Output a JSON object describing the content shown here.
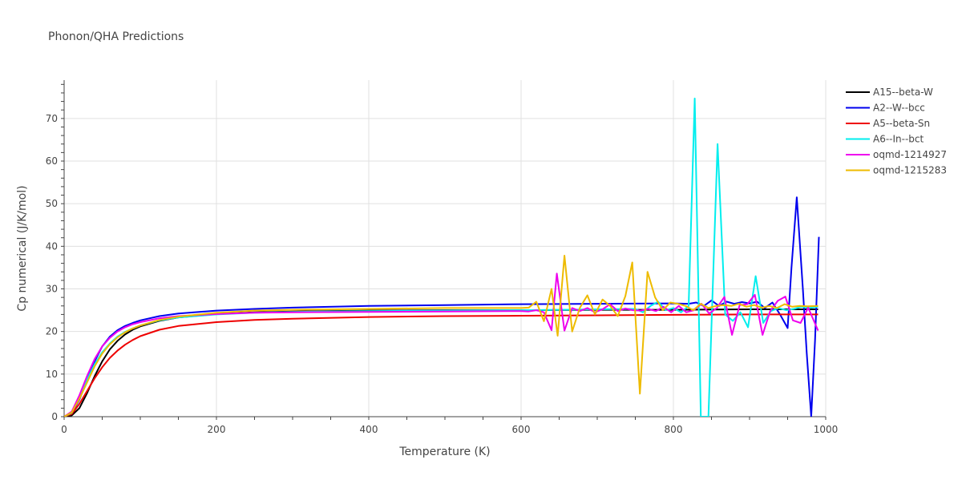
{
  "chart_data": {
    "type": "line",
    "title": "Phonon/QHA Predictions",
    "xlabel": "Temperature (K)",
    "ylabel": "Cp numerical (J/K/mol)",
    "xlim": [
      0,
      1000
    ],
    "ylim": [
      0,
      79
    ],
    "x_ticks": [
      0,
      200,
      400,
      600,
      800,
      1000
    ],
    "y_ticks": [
      0,
      10,
      20,
      30,
      40,
      50,
      60,
      70
    ],
    "grid": true,
    "legend_position": "top-right",
    "series": [
      {
        "name": "A15--beta-W",
        "color": "#000000",
        "points": [
          [
            0,
            0
          ],
          [
            10,
            0.3
          ],
          [
            20,
            2
          ],
          [
            30,
            5.5
          ],
          [
            40,
            9.5
          ],
          [
            50,
            13
          ],
          [
            60,
            15.8
          ],
          [
            70,
            17.8
          ],
          [
            80,
            19.3
          ],
          [
            90,
            20.4
          ],
          [
            100,
            21.2
          ],
          [
            125,
            22.5
          ],
          [
            150,
            23.3
          ],
          [
            200,
            24.1
          ],
          [
            250,
            24.5
          ],
          [
            300,
            24.7
          ],
          [
            400,
            24.9
          ],
          [
            500,
            25
          ],
          [
            600,
            25
          ],
          [
            700,
            25.1
          ],
          [
            800,
            25.1
          ],
          [
            900,
            25.2
          ],
          [
            990,
            25.2
          ]
        ]
      },
      {
        "name": "A2--W--bcc",
        "color": "#0000ee",
        "points": [
          [
            0,
            0
          ],
          [
            10,
            0.8
          ],
          [
            20,
            4
          ],
          [
            30,
            8.5
          ],
          [
            40,
            13
          ],
          [
            50,
            16.5
          ],
          [
            60,
            18.8
          ],
          [
            70,
            20.3
          ],
          [
            80,
            21.3
          ],
          [
            90,
            22
          ],
          [
            100,
            22.6
          ],
          [
            125,
            23.6
          ],
          [
            150,
            24.2
          ],
          [
            200,
            24.9
          ],
          [
            250,
            25.3
          ],
          [
            300,
            25.6
          ],
          [
            400,
            26
          ],
          [
            500,
            26.2
          ],
          [
            600,
            26.4
          ],
          [
            700,
            26.5
          ],
          [
            800,
            26.6
          ],
          [
            820,
            26.5
          ],
          [
            830,
            26.8
          ],
          [
            840,
            26
          ],
          [
            850,
            27.3
          ],
          [
            860,
            26
          ],
          [
            870,
            27
          ],
          [
            880,
            26.5
          ],
          [
            890,
            26.9
          ],
          [
            900,
            26.6
          ],
          [
            910,
            27
          ],
          [
            920,
            25.5
          ],
          [
            930,
            26.8
          ],
          [
            940,
            24
          ],
          [
            950,
            20.8
          ],
          [
            955,
            35
          ],
          [
            962,
            51.5
          ],
          [
            970,
            30
          ],
          [
            975,
            15
          ],
          [
            981,
            0
          ],
          [
            986,
            18
          ],
          [
            991,
            42.2
          ]
        ]
      },
      {
        "name": "A5--beta-Sn",
        "color": "#ee0000",
        "points": [
          [
            0,
            0
          ],
          [
            10,
            0.6
          ],
          [
            20,
            3
          ],
          [
            30,
            6
          ],
          [
            40,
            9
          ],
          [
            50,
            11.6
          ],
          [
            60,
            13.8
          ],
          [
            70,
            15.5
          ],
          [
            80,
            16.9
          ],
          [
            90,
            18
          ],
          [
            100,
            18.9
          ],
          [
            125,
            20.4
          ],
          [
            150,
            21.3
          ],
          [
            200,
            22.2
          ],
          [
            250,
            22.7
          ],
          [
            300,
            23
          ],
          [
            400,
            23.4
          ],
          [
            500,
            23.6
          ],
          [
            600,
            23.7
          ],
          [
            700,
            23.8
          ],
          [
            800,
            23.9
          ],
          [
            900,
            24
          ],
          [
            990,
            24
          ]
        ]
      },
      {
        "name": "A6--In--bct",
        "color": "#00eeee",
        "points": [
          [
            0,
            0
          ],
          [
            10,
            0.9
          ],
          [
            20,
            4.5
          ],
          [
            30,
            8.6
          ],
          [
            40,
            12.3
          ],
          [
            50,
            15.1
          ],
          [
            60,
            17.2
          ],
          [
            70,
            18.8
          ],
          [
            80,
            19.9
          ],
          [
            90,
            20.7
          ],
          [
            100,
            21.4
          ],
          [
            125,
            22.6
          ],
          [
            150,
            23.3
          ],
          [
            200,
            24
          ],
          [
            250,
            24.4
          ],
          [
            300,
            24.6
          ],
          [
            400,
            24.8
          ],
          [
            500,
            24.9
          ],
          [
            600,
            25
          ],
          [
            650,
            25.1
          ],
          [
            700,
            25.2
          ],
          [
            750,
            25.3
          ],
          [
            760,
            24.5
          ],
          [
            770,
            26
          ],
          [
            780,
            27
          ],
          [
            790,
            25
          ],
          [
            800,
            25.5
          ],
          [
            810,
            24.5
          ],
          [
            820,
            26
          ],
          [
            828,
            74.7
          ],
          [
            836,
            0
          ],
          [
            846,
            0
          ],
          [
            858,
            64
          ],
          [
            868,
            24
          ],
          [
            878,
            22.5
          ],
          [
            888,
            24.5
          ],
          [
            898,
            21
          ],
          [
            908,
            33
          ],
          [
            918,
            22
          ],
          [
            928,
            24.8
          ],
          [
            938,
            25.5
          ],
          [
            948,
            25
          ],
          [
            958,
            25.3
          ],
          [
            968,
            25.8
          ],
          [
            978,
            25.5
          ],
          [
            990,
            25.8
          ]
        ]
      },
      {
        "name": "oqmd-1214927",
        "color": "#ee00ee",
        "points": [
          [
            0,
            0
          ],
          [
            10,
            1.2
          ],
          [
            20,
            5
          ],
          [
            30,
            9.5
          ],
          [
            40,
            13.5
          ],
          [
            50,
            16.5
          ],
          [
            60,
            18.5
          ],
          [
            70,
            20
          ],
          [
            80,
            21
          ],
          [
            90,
            21.7
          ],
          [
            100,
            22.2
          ],
          [
            125,
            23.1
          ],
          [
            150,
            23.6
          ],
          [
            200,
            24.1
          ],
          [
            250,
            24.4
          ],
          [
            300,
            24.5
          ],
          [
            400,
            24.6
          ],
          [
            500,
            24.7
          ],
          [
            600,
            24.8
          ],
          [
            610,
            24.7
          ],
          [
            620,
            25
          ],
          [
            630,
            24.5
          ],
          [
            640,
            20.3
          ],
          [
            647,
            33.6
          ],
          [
            657,
            20.2
          ],
          [
            667,
            25.5
          ],
          [
            677,
            24.8
          ],
          [
            687,
            25.5
          ],
          [
            697,
            24.5
          ],
          [
            707,
            25.2
          ],
          [
            717,
            26.4
          ],
          [
            727,
            24.8
          ],
          [
            737,
            25.4
          ],
          [
            747,
            25
          ],
          [
            757,
            24.9
          ],
          [
            767,
            25.3
          ],
          [
            777,
            24.8
          ],
          [
            787,
            25.8
          ],
          [
            797,
            24.5
          ],
          [
            807,
            26
          ],
          [
            817,
            24.5
          ],
          [
            827,
            25
          ],
          [
            837,
            26.5
          ],
          [
            847,
            24.2
          ],
          [
            857,
            25.5
          ],
          [
            867,
            28.1
          ],
          [
            877,
            19.2
          ],
          [
            887,
            26.2
          ],
          [
            897,
            26.4
          ],
          [
            907,
            28.6
          ],
          [
            917,
            19.2
          ],
          [
            927,
            24.8
          ],
          [
            937,
            27.2
          ],
          [
            947,
            28.2
          ],
          [
            957,
            22.6
          ],
          [
            967,
            22
          ],
          [
            977,
            25.6
          ],
          [
            990,
            20.2
          ]
        ]
      },
      {
        "name": "oqmd-1215283",
        "color": "#eebb00",
        "points": [
          [
            0,
            0
          ],
          [
            10,
            1
          ],
          [
            20,
            4.2
          ],
          [
            30,
            8
          ],
          [
            40,
            11.8
          ],
          [
            50,
            14.8
          ],
          [
            60,
            17
          ],
          [
            70,
            18.6
          ],
          [
            80,
            19.8
          ],
          [
            90,
            20.7
          ],
          [
            100,
            21.4
          ],
          [
            125,
            22.7
          ],
          [
            150,
            23.5
          ],
          [
            200,
            24.4
          ],
          [
            250,
            24.9
          ],
          [
            300,
            25.1
          ],
          [
            400,
            25.3
          ],
          [
            500,
            25.5
          ],
          [
            600,
            25.5
          ],
          [
            610,
            25.6
          ],
          [
            620,
            27
          ],
          [
            630,
            22.4
          ],
          [
            640,
            30
          ],
          [
            648,
            19
          ],
          [
            657,
            37.8
          ],
          [
            667,
            20
          ],
          [
            677,
            25.5
          ],
          [
            687,
            28.5
          ],
          [
            697,
            24
          ],
          [
            707,
            27.5
          ],
          [
            717,
            26
          ],
          [
            727,
            23.6
          ],
          [
            737,
            28.3
          ],
          [
            746,
            36.2
          ],
          [
            756,
            5.4
          ],
          [
            766,
            34
          ],
          [
            776,
            28
          ],
          [
            786,
            25
          ],
          [
            796,
            26.8
          ],
          [
            806,
            26.5
          ],
          [
            816,
            26
          ],
          [
            826,
            25
          ],
          [
            836,
            26.5
          ],
          [
            846,
            25.5
          ],
          [
            856,
            26
          ],
          [
            866,
            26.2
          ],
          [
            876,
            26
          ],
          [
            886,
            26.5
          ],
          [
            896,
            25.8
          ],
          [
            906,
            26.2
          ],
          [
            916,
            25.6
          ],
          [
            926,
            26
          ],
          [
            936,
            25.5
          ],
          [
            946,
            26.4
          ],
          [
            956,
            25.8
          ],
          [
            966,
            26
          ],
          [
            976,
            25.9
          ],
          [
            990,
            26
          ]
        ]
      }
    ]
  }
}
